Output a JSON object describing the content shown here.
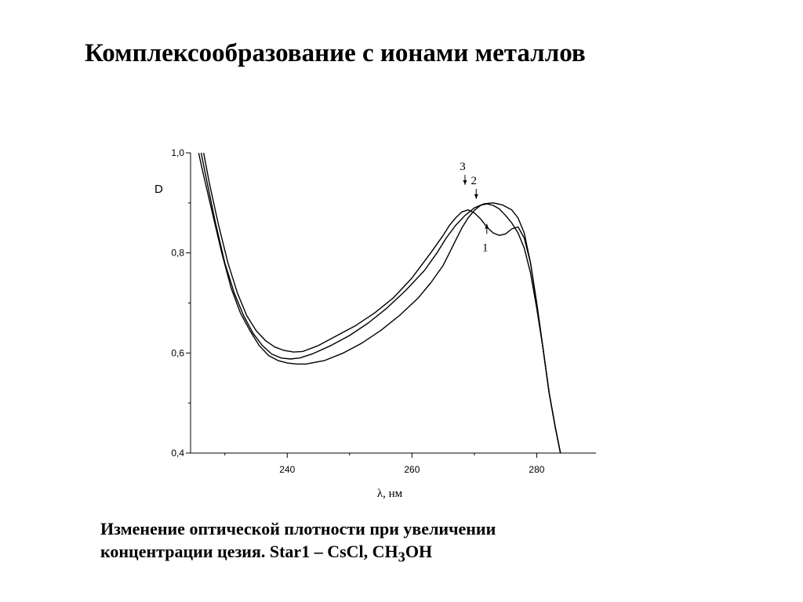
{
  "slide": {
    "title": "Комплексообразование с ионами металлов",
    "caption_line1": "Изменение оптической плотности при увеличении",
    "caption_line2_a": "концентрации цезия. Star1 – CsCl, CH",
    "caption_line2_sub": "3",
    "caption_line2_b": "OH"
  },
  "chart_data": {
    "type": "line",
    "title": "",
    "xlabel": "λ, нм",
    "ylabel": "D",
    "xlim": [
      224.5,
      289.5
    ],
    "ylim": [
      0.4,
      1.0
    ],
    "x_ticks": [
      240,
      260,
      280
    ],
    "x_tick_labels": [
      "240",
      "260",
      "280"
    ],
    "x_minor_ticks": [
      230,
      250,
      270
    ],
    "y_ticks": [
      0.4,
      0.6,
      0.8,
      1.0
    ],
    "y_tick_labels": [
      "0,4",
      "0,6",
      "0,8",
      "1,0"
    ],
    "y_minor_ticks": [
      0.5,
      0.7,
      0.9
    ],
    "grid": false,
    "legend": "none",
    "line_color": "#000000",
    "series": [
      {
        "label": "1",
        "x": [
          225.8,
          226.5,
          228,
          229.5,
          231,
          232.5,
          234,
          235.5,
          237,
          238.5,
          240,
          241.5,
          243,
          246,
          249,
          252,
          255,
          258,
          261,
          263,
          265,
          266,
          267,
          268,
          269,
          270,
          271,
          272,
          273,
          274,
          275,
          276,
          277,
          278,
          279,
          280,
          281,
          282,
          283,
          283.8
        ],
        "y": [
          1.0,
          0.96,
          0.88,
          0.8,
          0.73,
          0.68,
          0.645,
          0.615,
          0.595,
          0.585,
          0.58,
          0.578,
          0.578,
          0.585,
          0.6,
          0.62,
          0.645,
          0.675,
          0.71,
          0.74,
          0.775,
          0.8,
          0.825,
          0.85,
          0.87,
          0.885,
          0.895,
          0.898,
          0.895,
          0.888,
          0.875,
          0.86,
          0.84,
          0.81,
          0.76,
          0.69,
          0.61,
          0.52,
          0.45,
          0.4
        ]
      },
      {
        "label": "2",
        "x": [
          226.2,
          227,
          228.5,
          230,
          231.5,
          233,
          234.5,
          236,
          237.5,
          239,
          240.5,
          242,
          244,
          247,
          250,
          253,
          256,
          259,
          262,
          264,
          265.5,
          267,
          268.5,
          270,
          271.5,
          273,
          274.5,
          276,
          277,
          278,
          279,
          280,
          281,
          282,
          283,
          283.8
        ],
        "y": [
          1.0,
          0.95,
          0.86,
          0.78,
          0.72,
          0.675,
          0.64,
          0.615,
          0.598,
          0.59,
          0.588,
          0.59,
          0.598,
          0.615,
          0.635,
          0.66,
          0.69,
          0.725,
          0.765,
          0.8,
          0.83,
          0.855,
          0.875,
          0.89,
          0.898,
          0.9,
          0.896,
          0.886,
          0.87,
          0.84,
          0.78,
          0.7,
          0.61,
          0.52,
          0.45,
          0.4
        ]
      },
      {
        "label": "3",
        "x": [
          226.6,
          227.5,
          229,
          230.5,
          232,
          233.5,
          235,
          236.5,
          238,
          239.5,
          241,
          242.5,
          245,
          248,
          251,
          254,
          257,
          260,
          263,
          265,
          266,
          267,
          268,
          269,
          270,
          271,
          272,
          273,
          274,
          275,
          276,
          277,
          278,
          279,
          280,
          281,
          282,
          283,
          283.8
        ],
        "y": [
          1.0,
          0.94,
          0.855,
          0.78,
          0.72,
          0.675,
          0.645,
          0.625,
          0.612,
          0.605,
          0.602,
          0.603,
          0.615,
          0.635,
          0.655,
          0.68,
          0.71,
          0.75,
          0.8,
          0.835,
          0.855,
          0.87,
          0.882,
          0.886,
          0.88,
          0.868,
          0.852,
          0.84,
          0.835,
          0.838,
          0.848,
          0.852,
          0.83,
          0.78,
          0.7,
          0.61,
          0.52,
          0.45,
          0.4
        ]
      }
    ],
    "annotations": [
      {
        "text": "3",
        "arrow_x": 268.5,
        "arrow_y_from": 0.956,
        "arrow_y_to": 0.936
      },
      {
        "text": "2",
        "arrow_x": 270.3,
        "arrow_y_from": 0.928,
        "arrow_y_to": 0.908
      },
      {
        "text": "1",
        "arrow_x": 272.0,
        "arrow_y_from": 0.838,
        "arrow_y_to": 0.858
      }
    ]
  }
}
